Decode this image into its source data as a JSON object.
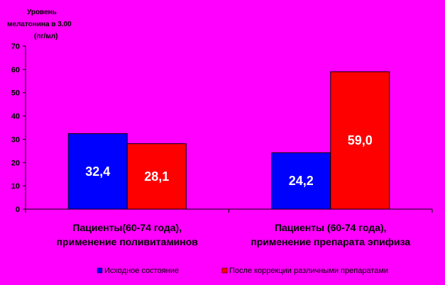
{
  "chart_data": {
    "type": "bar",
    "ylabel_lines": [
      "Уровень",
      "мелатонина в 3.00",
      "(пг/мл)"
    ],
    "xlabel": "",
    "ylim": [
      0,
      70
    ],
    "yticks": [
      0,
      10,
      20,
      30,
      40,
      50,
      60,
      70
    ],
    "grid": false,
    "legend_position": "bottom-right",
    "categories": [
      [
        "Пациенты(60-74 года),",
        "применение поливитаминов"
      ],
      [
        "Пациенты (60-74 года),",
        "применение препарата эпифиза"
      ]
    ],
    "series": [
      {
        "name": "Исходное состояние",
        "color": "#0000ff",
        "values": [
          32.4,
          24.2
        ],
        "labels": [
          "32,4",
          "24,2"
        ]
      },
      {
        "name": "После коррекции различными препаратами",
        "color": "#ff0000",
        "values": [
          28.1,
          59.0
        ],
        "labels": [
          "28,1",
          "59,0"
        ]
      }
    ]
  }
}
